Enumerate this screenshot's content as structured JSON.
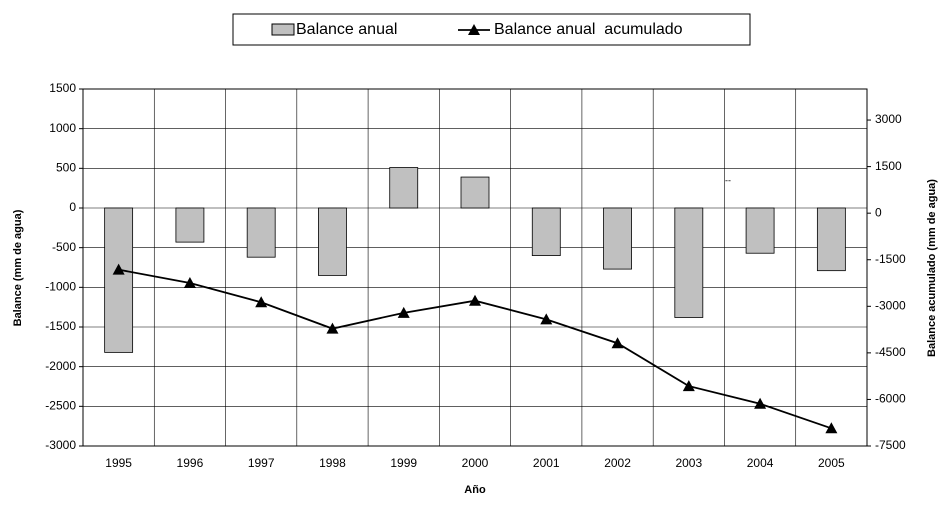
{
  "chart_data": {
    "type": "bar-line",
    "x_label": "Año",
    "y_label": "Balance (mm de agua)",
    "y2_label": "Balance acumulado (mm de agua)",
    "annotation": "--",
    "categories": [
      "1995",
      "1996",
      "1997",
      "1998",
      "1999",
      "2000",
      "2001",
      "2002",
      "2003",
      "2004",
      "2005"
    ],
    "series": [
      {
        "name": "Balance anual",
        "type": "bar",
        "color": "#c0c0c0",
        "values": [
          -1820,
          -430,
          -620,
          -850,
          510,
          390,
          -600,
          -770,
          -1380,
          -570,
          -790
        ]
      },
      {
        "name": "Balance anual  acumulado",
        "type": "line",
        "axis": "y2",
        "color": "#000000",
        "values": [
          -1820,
          -2250,
          -2870,
          -3720,
          -3210,
          -2820,
          -3420,
          -4190,
          -5570,
          -6140,
          -6930
        ]
      }
    ],
    "ylim": [
      -3000,
      1500
    ],
    "yticks": [
      -3000,
      -2500,
      -2000,
      -1500,
      -1000,
      -500,
      0,
      500,
      1000,
      1500
    ],
    "y2lim": [
      -7500,
      4000
    ],
    "y2ticks": [
      -7500,
      -6000,
      -4500,
      -3000,
      -1500,
      0,
      1500,
      3000
    ],
    "grid": true,
    "legend": "top"
  }
}
